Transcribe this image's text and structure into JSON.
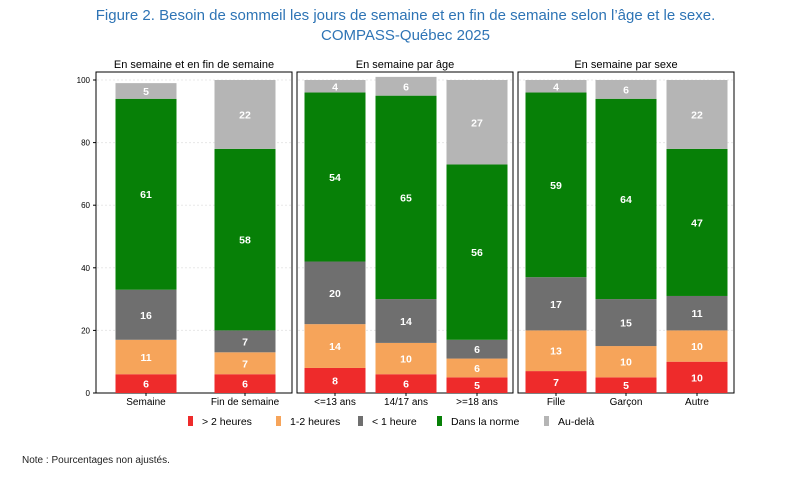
{
  "figure": {
    "title_line1": "Figure 2. Besoin de sommeil les jours de semaine et en fin de semaine selon l’âge et le sexe.",
    "title_line2": "COMPASS-Québec 2025",
    "note": "Note : Pourcentages non ajustés."
  },
  "colors": {
    "gt2": "#ee2b2b",
    "h12": "#f6a45a",
    "lt1": "#6f6f6f",
    "norm": "#078007",
    "beyond": "#b5b5b5"
  },
  "chart_data": {
    "type": "bar",
    "stacked": true,
    "ylim": [
      0,
      100
    ],
    "yticks": [
      "0",
      "20",
      "40",
      "60",
      "80",
      "100"
    ],
    "legend_position": "bottom",
    "legend": [
      {
        "key": "gt2",
        "label": "> 2 heures"
      },
      {
        "key": "h12",
        "label": "1-2 heures"
      },
      {
        "key": "lt1",
        "label": "< 1 heure"
      },
      {
        "key": "norm",
        "label": "Dans la norme"
      },
      {
        "key": "beyond",
        "label": "Au-delà"
      }
    ],
    "panels": [
      {
        "title": "En semaine et en fin de semaine",
        "categories": [
          "Semaine",
          "Fin de semaine"
        ],
        "values": {
          "gt2": [
            6,
            6
          ],
          "h12": [
            11,
            7
          ],
          "lt1": [
            16,
            7
          ],
          "norm": [
            61,
            58
          ],
          "beyond": [
            5,
            22
          ]
        }
      },
      {
        "title": "En semaine par âge",
        "categories": [
          "<=13 ans",
          "14/17 ans",
          ">=18 ans"
        ],
        "values": {
          "gt2": [
            8,
            6,
            5
          ],
          "h12": [
            14,
            10,
            6
          ],
          "lt1": [
            20,
            14,
            6
          ],
          "norm": [
            54,
            65,
            56
          ],
          "beyond": [
            4,
            6,
            27
          ]
        }
      },
      {
        "title": "En semaine par sexe",
        "categories": [
          "Fille",
          "Garçon",
          "Autre"
        ],
        "values": {
          "gt2": [
            7,
            5,
            10
          ],
          "h12": [
            13,
            10,
            10
          ],
          "lt1": [
            17,
            15,
            11
          ],
          "norm": [
            59,
            64,
            47
          ],
          "beyond": [
            4,
            6,
            22
          ]
        }
      }
    ]
  }
}
